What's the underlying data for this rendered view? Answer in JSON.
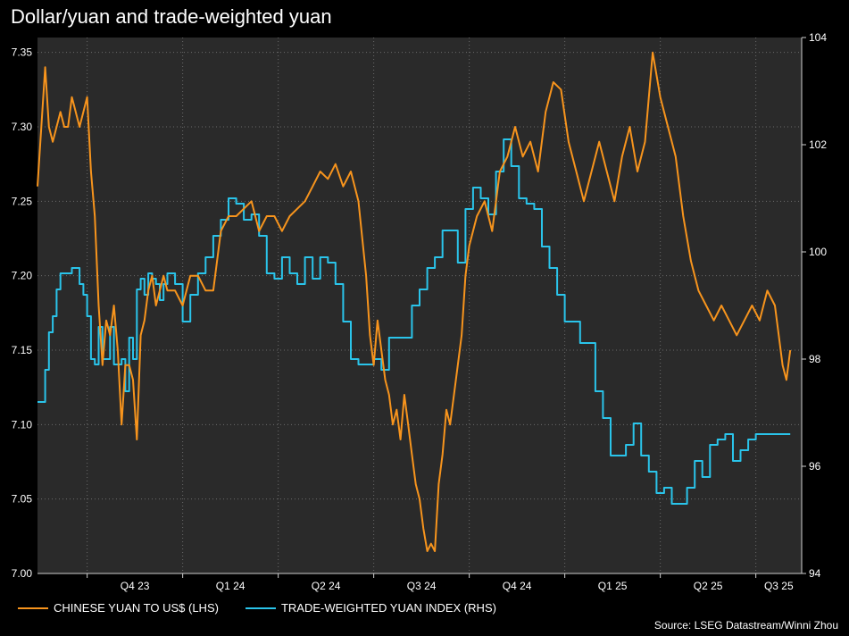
{
  "title": "Dollar/yuan and trade-weighted yuan",
  "source": "Source: LSEG Datastream/Winni Zhou",
  "colors": {
    "background": "#000000",
    "plot_bg": "#2a2a2a",
    "usdcny": "#f7941d",
    "twi": "#2ac4ea",
    "grid": "#6a6a6a"
  },
  "chart_data": {
    "type": "line",
    "title": "Dollar/yuan and trade-weighted yuan",
    "x_period_labels": [
      "Q4 23",
      "Q1 24",
      "Q2 24",
      "Q3 24",
      "Q4 24",
      "Q1 25",
      "Q2 25",
      "Q3 25"
    ],
    "x_range": [
      2023.62,
      2025.62
    ],
    "quarter_boundaries": [
      2023.75,
      2024.0,
      2024.25,
      2024.5,
      2024.75,
      2025.0,
      2025.25,
      2025.5
    ],
    "left_axis": {
      "label": "LHS",
      "range": [
        7.0,
        7.36
      ],
      "ticks": [
        "7.00",
        "7.05",
        "7.10",
        "7.15",
        "7.20",
        "7.25",
        "7.30",
        "7.35"
      ]
    },
    "right_axis": {
      "label": "RHS",
      "range": [
        94,
        104
      ],
      "ticks": [
        "94",
        "96",
        "98",
        "100",
        "102",
        "104"
      ]
    },
    "grid": true,
    "legend_position": "bottom",
    "series": [
      {
        "name": "CHINESE YUAN TO US$ (LHS)",
        "axis": "left",
        "x": [
          2023.62,
          2023.63,
          2023.64,
          2023.65,
          2023.66,
          2023.67,
          2023.68,
          2023.69,
          2023.7,
          2023.71,
          2023.72,
          2023.73,
          2023.74,
          2023.75,
          2023.76,
          2023.77,
          2023.78,
          2023.79,
          2023.8,
          2023.81,
          2023.82,
          2023.83,
          2023.84,
          2023.85,
          2023.86,
          2023.87,
          2023.88,
          2023.89,
          2023.9,
          2023.91,
          2023.92,
          2023.93,
          2023.94,
          2023.95,
          2023.96,
          2023.98,
          2024.0,
          2024.02,
          2024.04,
          2024.06,
          2024.08,
          2024.1,
          2024.12,
          2024.14,
          2024.16,
          2024.18,
          2024.2,
          2024.22,
          2024.24,
          2024.26,
          2024.28,
          2024.3,
          2024.32,
          2024.34,
          2024.36,
          2024.38,
          2024.4,
          2024.42,
          2024.44,
          2024.46,
          2024.48,
          2024.49,
          2024.5,
          2024.51,
          2024.52,
          2024.53,
          2024.54,
          2024.55,
          2024.56,
          2024.57,
          2024.58,
          2024.59,
          2024.6,
          2024.61,
          2024.62,
          2024.63,
          2024.64,
          2024.65,
          2024.66,
          2024.67,
          2024.68,
          2024.69,
          2024.7,
          2024.71,
          2024.72,
          2024.73,
          2024.74,
          2024.75,
          2024.77,
          2024.79,
          2024.81,
          2024.83,
          2024.85,
          2024.87,
          2024.89,
          2024.91,
          2024.93,
          2024.95,
          2024.97,
          2024.99,
          2025.01,
          2025.03,
          2025.05,
          2025.07,
          2025.09,
          2025.11,
          2025.13,
          2025.15,
          2025.17,
          2025.19,
          2025.21,
          2025.23,
          2025.25,
          2025.27,
          2025.29,
          2025.31,
          2025.33,
          2025.35,
          2025.37,
          2025.39,
          2025.41,
          2025.43,
          2025.45,
          2025.47,
          2025.49,
          2025.51,
          2025.53,
          2025.55,
          2025.57,
          2025.58,
          2025.59
        ],
        "values": [
          7.26,
          7.3,
          7.34,
          7.3,
          7.29,
          7.3,
          7.31,
          7.3,
          7.3,
          7.32,
          7.31,
          7.3,
          7.31,
          7.32,
          7.27,
          7.24,
          7.18,
          7.14,
          7.17,
          7.16,
          7.18,
          7.15,
          7.1,
          7.14,
          7.14,
          7.13,
          7.09,
          7.16,
          7.17,
          7.19,
          7.2,
          7.18,
          7.19,
          7.2,
          7.19,
          7.19,
          7.18,
          7.2,
          7.2,
          7.19,
          7.19,
          7.23,
          7.24,
          7.24,
          7.245,
          7.25,
          7.23,
          7.24,
          7.24,
          7.23,
          7.24,
          7.245,
          7.25,
          7.26,
          7.27,
          7.265,
          7.275,
          7.26,
          7.27,
          7.25,
          7.2,
          7.16,
          7.14,
          7.17,
          7.15,
          7.13,
          7.12,
          7.1,
          7.11,
          7.09,
          7.12,
          7.1,
          7.08,
          7.06,
          7.05,
          7.03,
          7.015,
          7.02,
          7.015,
          7.06,
          7.08,
          7.11,
          7.1,
          7.12,
          7.14,
          7.16,
          7.2,
          7.22,
          7.24,
          7.25,
          7.23,
          7.27,
          7.28,
          7.3,
          7.28,
          7.29,
          7.27,
          7.31,
          7.33,
          7.325,
          7.29,
          7.27,
          7.25,
          7.27,
          7.29,
          7.27,
          7.25,
          7.28,
          7.3,
          7.27,
          7.29,
          7.35,
          7.32,
          7.3,
          7.28,
          7.24,
          7.21,
          7.19,
          7.18,
          7.17,
          7.18,
          7.17,
          7.16,
          7.17,
          7.18,
          7.17,
          7.19,
          7.18,
          7.14,
          7.13,
          7.15
        ]
      },
      {
        "name": "TRADE-WEIGHTED YUAN INDEX (RHS)",
        "axis": "right",
        "x": [
          2023.62,
          2023.63,
          2023.64,
          2023.65,
          2023.66,
          2023.67,
          2023.68,
          2023.69,
          2023.7,
          2023.71,
          2023.72,
          2023.73,
          2023.74,
          2023.75,
          2023.76,
          2023.77,
          2023.78,
          2023.79,
          2023.8,
          2023.81,
          2023.82,
          2023.83,
          2023.84,
          2023.85,
          2023.86,
          2023.87,
          2023.88,
          2023.89,
          2023.9,
          2023.91,
          2023.92,
          2023.93,
          2023.94,
          2023.95,
          2023.96,
          2023.98,
          2024.0,
          2024.02,
          2024.04,
          2024.06,
          2024.08,
          2024.1,
          2024.12,
          2024.14,
          2024.16,
          2024.18,
          2024.2,
          2024.22,
          2024.24,
          2024.26,
          2024.28,
          2024.3,
          2024.32,
          2024.34,
          2024.36,
          2024.38,
          2024.4,
          2024.42,
          2024.44,
          2024.46,
          2024.48,
          2024.5,
          2024.52,
          2024.54,
          2024.56,
          2024.58,
          2024.6,
          2024.62,
          2024.64,
          2024.66,
          2024.68,
          2024.7,
          2024.72,
          2024.74,
          2024.76,
          2024.78,
          2024.8,
          2024.82,
          2024.84,
          2024.86,
          2024.88,
          2024.9,
          2024.92,
          2024.94,
          2024.96,
          2024.98,
          2025.0,
          2025.02,
          2025.04,
          2025.06,
          2025.08,
          2025.1,
          2025.12,
          2025.14,
          2025.16,
          2025.18,
          2025.2,
          2025.22,
          2025.24,
          2025.26,
          2025.28,
          2025.3,
          2025.32,
          2025.34,
          2025.36,
          2025.38,
          2025.4,
          2025.42,
          2025.44,
          2025.46,
          2025.48,
          2025.5,
          2025.52,
          2025.54,
          2025.56,
          2025.58,
          2025.59
        ],
        "values": [
          97.2,
          97.2,
          97.8,
          98.5,
          98.8,
          99.3,
          99.6,
          99.6,
          99.6,
          99.7,
          99.7,
          99.4,
          99.2,
          98.8,
          98.0,
          97.9,
          98.6,
          98.0,
          98.0,
          98.6,
          97.9,
          97.9,
          98.0,
          97.4,
          98.4,
          98.0,
          99.3,
          99.5,
          99.2,
          99.6,
          99.5,
          99.4,
          99.1,
          99.4,
          99.6,
          99.4,
          98.7,
          99.2,
          99.6,
          99.9,
          100.3,
          100.6,
          101.0,
          100.9,
          100.6,
          100.7,
          100.3,
          99.6,
          99.5,
          99.9,
          99.6,
          99.4,
          99.9,
          99.5,
          99.9,
          99.8,
          99.4,
          98.7,
          98.0,
          97.9,
          97.9,
          98.0,
          97.8,
          98.4,
          98.4,
          98.4,
          99.0,
          99.3,
          99.7,
          99.9,
          100.4,
          100.4,
          99.8,
          100.8,
          101.2,
          101.0,
          100.7,
          101.5,
          102.1,
          101.6,
          101.0,
          100.9,
          100.8,
          100.1,
          99.7,
          99.2,
          98.7,
          98.7,
          98.3,
          98.3,
          97.4,
          96.9,
          96.2,
          96.2,
          96.4,
          96.8,
          96.2,
          95.9,
          95.5,
          95.6,
          95.3,
          95.3,
          95.6,
          96.1,
          95.8,
          96.4,
          96.5,
          96.6,
          96.1,
          96.3,
          96.5,
          96.6,
          96.6,
          96.6,
          96.6,
          96.6,
          96.6
        ]
      }
    ]
  },
  "legend": [
    {
      "label": "CHINESE YUAN TO US$ (LHS)",
      "color": "#f7941d"
    },
    {
      "label": "TRADE-WEIGHTED YUAN INDEX (RHS)",
      "color": "#2ac4ea"
    }
  ]
}
